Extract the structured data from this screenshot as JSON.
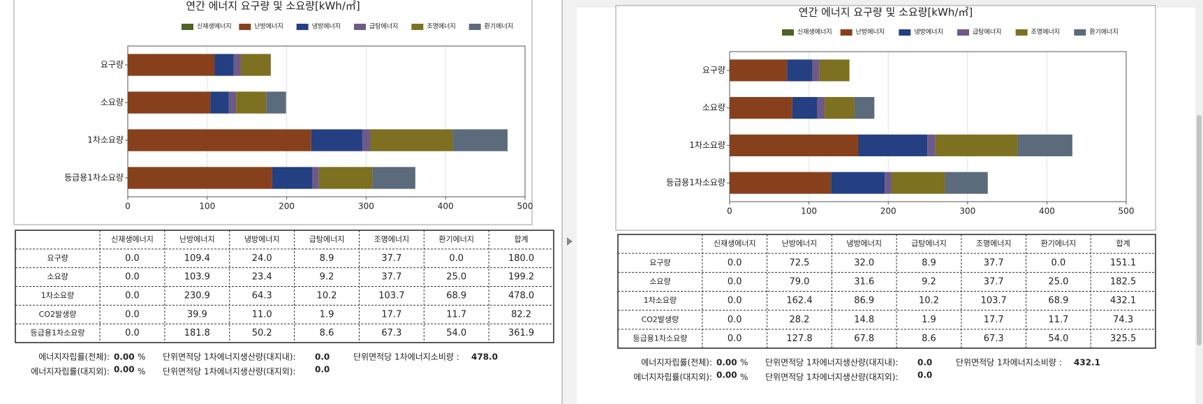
{
  "chart_data": [
    {
      "type": "bar",
      "orientation": "horizontal",
      "stacked": true,
      "title": "연간 에너지 요구량 및 소요량[kWh/㎡]",
      "categories": [
        "요구량",
        "소요량",
        "1차소요량",
        "등급용1차소요량"
      ],
      "series": [
        {
          "name": "신재생에너지",
          "color": "#4f6228",
          "values": [
            0,
            0,
            0,
            0
          ]
        },
        {
          "name": "난방에너지",
          "color": "#87401c",
          "values": [
            109.4,
            103.9,
            230.9,
            181.8
          ]
        },
        {
          "name": "냉방에너지",
          "color": "#243f82",
          "values": [
            24.0,
            23.4,
            64.3,
            50.2
          ]
        },
        {
          "name": "급탕에너지",
          "color": "#6e5a88",
          "values": [
            8.9,
            9.2,
            10.2,
            8.6
          ]
        },
        {
          "name": "조명에너지",
          "color": "#7d7020",
          "values": [
            37.7,
            37.7,
            103.7,
            67.3
          ]
        },
        {
          "name": "환기에너지",
          "color": "#5b6b7b",
          "values": [
            0,
            25.0,
            68.9,
            54.0
          ]
        }
      ],
      "xlim": [
        0,
        500
      ],
      "xticks": [
        0,
        100,
        200,
        300,
        400,
        500
      ],
      "grid": true
    },
    {
      "type": "bar",
      "orientation": "horizontal",
      "stacked": true,
      "title": "연간 에너지 요구량 및 소요량[kWh/㎡]",
      "categories": [
        "요구량",
        "소요량",
        "1차소요량",
        "등급용1차소요량"
      ],
      "series": [
        {
          "name": "신재생에너지",
          "color": "#4f6228",
          "values": [
            0,
            0,
            0,
            0
          ]
        },
        {
          "name": "난방에너지",
          "color": "#87401c",
          "values": [
            72.5,
            79.0,
            162.4,
            127.8
          ]
        },
        {
          "name": "냉방에너지",
          "color": "#243f82",
          "values": [
            32.0,
            31.6,
            86.9,
            67.8
          ]
        },
        {
          "name": "급탕에너지",
          "color": "#6e5a88",
          "values": [
            8.9,
            9.2,
            10.2,
            8.6
          ]
        },
        {
          "name": "조명에너지",
          "color": "#7d7020",
          "values": [
            37.7,
            37.7,
            103.7,
            67.3
          ]
        },
        {
          "name": "환기에너지",
          "color": "#5b6b7b",
          "values": [
            0,
            25.0,
            68.9,
            54.0
          ]
        }
      ],
      "xlim": [
        0,
        500
      ],
      "xticks": [
        0,
        100,
        200,
        300,
        400,
        500
      ],
      "grid": true
    }
  ],
  "tables": [
    {
      "header": [
        "신재생에너지",
        "난방에너지",
        "냉방에너지",
        "급탕에너지",
        "조명에너지",
        "환기에너지",
        "합계"
      ],
      "rows": [
        [
          "요구량",
          "0.0",
          "109.4",
          "24.0",
          "8.9",
          "37.7",
          "0.0",
          "180.0"
        ],
        [
          "소요량",
          "0.0",
          "103.9",
          "23.4",
          "9.2",
          "37.7",
          "25.0",
          "199.2"
        ],
        [
          "1차소요량",
          "0.0",
          "230.9",
          "64.3",
          "10.2",
          "103.7",
          "68.9",
          "478.0"
        ],
        [
          "CO2발생량",
          "0.0",
          "39.9",
          "11.0",
          "1.9",
          "17.7",
          "11.7",
          "82.2"
        ],
        [
          "등급용1차소요량",
          "0.0",
          "181.8",
          "50.2",
          "8.6",
          "67.3",
          "54.0",
          "361.9"
        ]
      ]
    },
    {
      "header": [
        "신재생에너지",
        "난방에너지",
        "냉방에너지",
        "급탕에너지",
        "조명에너지",
        "환기에너지",
        "합계"
      ],
      "rows": [
        [
          "요구량",
          "0.0",
          "72.5",
          "32.0",
          "8.9",
          "37.7",
          "0.0",
          "151.1"
        ],
        [
          "소요량",
          "0.0",
          "79.0",
          "31.6",
          "9.2",
          "37.7",
          "25.0",
          "182.5"
        ],
        [
          "1차소요량",
          "0.0",
          "162.4",
          "86.9",
          "10.2",
          "103.7",
          "68.9",
          "432.1"
        ],
        [
          "CO2발생량",
          "0.0",
          "28.2",
          "14.8",
          "1.9",
          "17.7",
          "11.7",
          "74.3"
        ],
        [
          "등급용1차소요량",
          "0.0",
          "127.8",
          "67.8",
          "8.6",
          "67.3",
          "54.0",
          "325.5"
        ]
      ]
    }
  ],
  "footers": [
    [
      [
        "에너지자립률(전체):",
        "0.00",
        "%",
        "단위면적당 1차에너지생산량(대지내):",
        "0.0",
        "단위면적당 1차에너지소비량 :",
        "478.0"
      ],
      [
        "에너지자립률(대지외):",
        "0.00",
        "%",
        "단위면적당 1차에너지생산량(대지외):",
        "0.0"
      ]
    ],
    [
      [
        "에너지자립률(전체):",
        "0.00",
        "%",
        "단위면적당 1차에너지생산량(대지내):",
        "0.0",
        "단위면적당 1차에너지소비량 :",
        "432.1"
      ],
      [
        "에너지자립률(대지외):",
        "0.00",
        "%",
        "단위면적당 1차에너지생산량(대지외):",
        "0.0"
      ]
    ]
  ]
}
